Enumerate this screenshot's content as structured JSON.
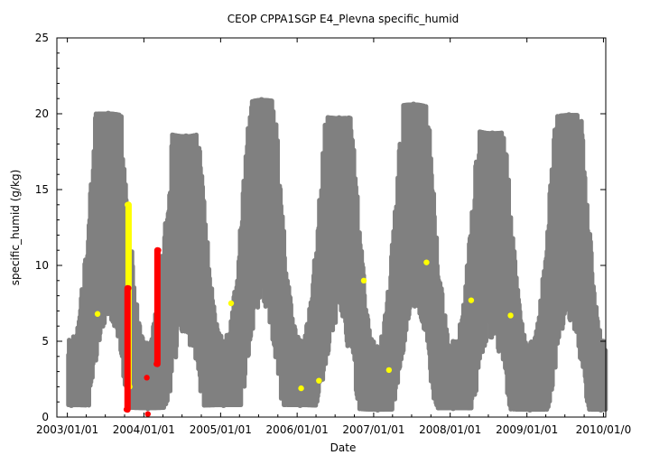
{
  "chart_data": {
    "type": "scatter",
    "title": "CEOP CPPA1SGP E4_Plevna  specific_humid",
    "xlabel": "Date",
    "ylabel": "specific_humid (g/kg)",
    "xlim": [
      "2002-11-12",
      "2010-01-12"
    ],
    "ylim": [
      0,
      25
    ],
    "x_tick_labels": [
      "2003/01/01",
      "2004/01/01",
      "2005/01/01",
      "2006/01/01",
      "2007/01/01",
      "2008/01/01",
      "2009/01/01",
      "2010/01/0"
    ],
    "y_tick_labels": [
      "0",
      "5",
      "10",
      "15",
      "20",
      "25"
    ],
    "grid": false,
    "legend": "none",
    "series": [
      {
        "color": "#808080",
        "style": "dense line-and-points time series with a yearly cycle (winter lows ~1 g/kg, summer highs ~16-20 g/kg)",
        "seasonal_peaks": [
          {
            "x": "2003-07-15",
            "y": 20.0
          },
          {
            "x": "2004-07-20",
            "y": 18.5
          },
          {
            "x": "2005-07-15",
            "y": 20.9
          },
          {
            "x": "2006-07-20",
            "y": 19.7
          },
          {
            "x": "2007-07-10",
            "y": 20.6
          },
          {
            "x": "2008-07-20",
            "y": 18.7
          },
          {
            "x": "2009-07-20",
            "y": 19.9
          }
        ],
        "seasonal_troughs": [
          {
            "x": "2003-01-20",
            "y": 0.8
          },
          {
            "x": "2004-01-20",
            "y": 0.6
          },
          {
            "x": "2005-01-15",
            "y": 0.8
          },
          {
            "x": "2006-01-15",
            "y": 0.8
          },
          {
            "x": "2007-01-20",
            "y": 0.5
          },
          {
            "x": "2008-01-15",
            "y": 0.6
          },
          {
            "x": "2009-01-15",
            "y": 0.5
          },
          {
            "x": "2009-12-20",
            "y": 0.5
          }
        ]
      },
      {
        "color": "#ffff00",
        "points": [
          {
            "x": "2003-05-25",
            "y": 6.8
          },
          {
            "x": "2003-10-15",
            "y": 14.0
          },
          {
            "x": "2003-10-25",
            "y": 2.0
          },
          {
            "x": "2005-02-20",
            "y": 7.5
          },
          {
            "x": "2006-01-20",
            "y": 1.9
          },
          {
            "x": "2006-04-15",
            "y": 2.4
          },
          {
            "x": "2006-11-15",
            "y": 9.0
          },
          {
            "x": "2007-03-15",
            "y": 3.1
          },
          {
            "x": "2007-09-10",
            "y": 10.2
          },
          {
            "x": "2008-04-10",
            "y": 7.7
          },
          {
            "x": "2008-10-15",
            "y": 6.7
          }
        ]
      },
      {
        "color": "#ff0000",
        "points": [
          {
            "x": "2003-10-10",
            "y": 0.5
          },
          {
            "x": "2003-10-20",
            "y": 8.5
          },
          {
            "x": "2004-01-15",
            "y": 2.6
          },
          {
            "x": "2004-01-20",
            "y": 0.2
          },
          {
            "x": "2004-03-01",
            "y": 3.5
          },
          {
            "x": "2004-03-10",
            "y": 11.0
          }
        ]
      }
    ]
  }
}
